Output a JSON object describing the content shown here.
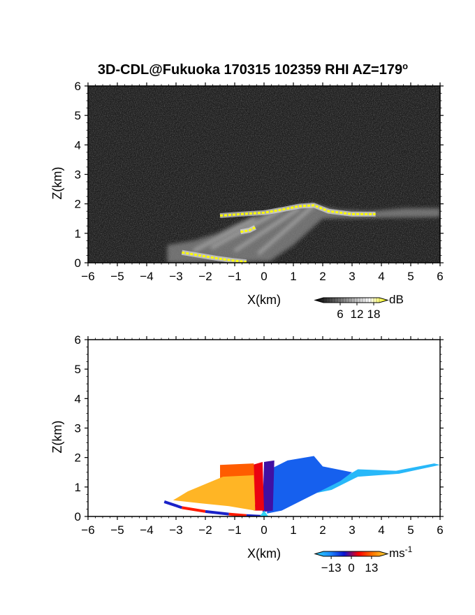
{
  "title": "3D-CDL@Fukuoka 170315 102359 RHI AZ=179",
  "title_suffix": "o",
  "chart_data": [
    {
      "type": "heatmap",
      "name": "reflectivity",
      "xlabel": "X(km)",
      "ylabel": "Z(km)",
      "xlim": [
        -6,
        6
      ],
      "ylim": [
        0,
        6
      ],
      "xticks": [
        -6,
        -5,
        -4,
        -3,
        -2,
        -1,
        0,
        1,
        2,
        3,
        4,
        5,
        6
      ],
      "yticks": [
        0,
        1,
        2,
        3,
        4,
        5,
        6
      ],
      "background": "#1e1e1e",
      "colorbar": {
        "unit": "dB",
        "ticks": [
          6,
          12,
          18
        ],
        "range": [
          0,
          20
        ],
        "colors": [
          "#000000",
          "#555555",
          "#aaaaaa",
          "#ffffff",
          "#ffff00"
        ]
      },
      "echo_envelope": [
        [
          -3.3,
          0.6
        ],
        [
          -2.4,
          0.75
        ],
        [
          -1.6,
          1.0
        ],
        [
          -1.0,
          1.3
        ],
        [
          -0.4,
          1.55
        ],
        [
          0.3,
          1.75
        ],
        [
          1.0,
          1.9
        ],
        [
          1.6,
          2.0
        ],
        [
          2.5,
          1.8
        ],
        [
          3.6,
          1.75
        ],
        [
          4.8,
          1.85
        ],
        [
          6.0,
          1.85
        ]
      ],
      "strong_echo_layers": [
        {
          "x": [
            -1.5,
            -0.8,
            0.0,
            0.6,
            1.2,
            1.7,
            2.2,
            3.0,
            3.8
          ],
          "z": [
            1.6,
            1.65,
            1.7,
            1.8,
            1.92,
            1.95,
            1.75,
            1.65,
            1.65
          ]
        },
        {
          "x": [
            -2.8,
            -2.2,
            -1.6,
            -1.1,
            -0.6
          ],
          "z": [
            0.35,
            0.25,
            0.15,
            0.08,
            0.03
          ]
        },
        {
          "x": [
            -0.8,
            -0.5,
            -0.3
          ],
          "z": [
            1.05,
            1.1,
            1.2
          ]
        }
      ]
    },
    {
      "type": "heatmap",
      "name": "doppler_velocity",
      "xlabel": "X(km)",
      "ylabel": "Z(km)",
      "xlim": [
        -6,
        6
      ],
      "ylim": [
        0,
        6
      ],
      "xticks": [
        -6,
        -5,
        -4,
        -3,
        -2,
        -1,
        0,
        1,
        2,
        3,
        4,
        5,
        6
      ],
      "yticks": [
        0,
        1,
        2,
        3,
        4,
        5,
        6
      ],
      "background": "#ffffff",
      "colorbar": {
        "unit": "ms",
        "unit_exp": "-1",
        "ticks": [
          -13,
          0,
          13
        ],
        "range": [
          -18,
          18
        ],
        "colors": [
          "#2fd5f5",
          "#1e90ff",
          "#0a14d2",
          "#ff0000",
          "#ff7a00",
          "#ffe040"
        ]
      },
      "regions": [
        {
          "velocity": -15,
          "polygon": [
            [
              1.8,
              0.8
            ],
            [
              3.2,
              1.6
            ],
            [
              4.5,
              1.55
            ],
            [
              5.8,
              1.8
            ],
            [
              6.0,
              1.75
            ],
            [
              4.6,
              1.45
            ],
            [
              3.2,
              1.35
            ],
            [
              2.3,
              0.9
            ]
          ]
        },
        {
          "velocity": -8,
          "polygon": [
            [
              0.1,
              0.1
            ],
            [
              0.2,
              1.6
            ],
            [
              0.8,
              1.9
            ],
            [
              1.7,
              2.05
            ],
            [
              2.0,
              1.7
            ],
            [
              3.0,
              1.5
            ],
            [
              2.6,
              1.2
            ],
            [
              1.6,
              0.7
            ],
            [
              0.6,
              0.2
            ]
          ]
        },
        {
          "velocity": -2,
          "polygon": [
            [
              -0.05,
              0.15
            ],
            [
              0.0,
              1.85
            ],
            [
              0.35,
              1.9
            ],
            [
              0.3,
              0.2
            ]
          ]
        },
        {
          "velocity": 3,
          "polygon": [
            [
              -0.35,
              0.2
            ],
            [
              -0.4,
              1.75
            ],
            [
              -0.05,
              1.85
            ],
            [
              0.0,
              0.2
            ]
          ]
        },
        {
          "velocity": 9,
          "polygon": [
            [
              -1.5,
              1.0
            ],
            [
              -1.5,
              1.75
            ],
            [
              -0.35,
              1.8
            ],
            [
              -0.3,
              0.4
            ],
            [
              -0.8,
              0.7
            ]
          ]
        },
        {
          "velocity": 15,
          "polygon": [
            [
              -3.1,
              0.55
            ],
            [
              -2.6,
              0.85
            ],
            [
              -2.0,
              1.1
            ],
            [
              -1.4,
              1.35
            ],
            [
              -0.35,
              1.4
            ],
            [
              -0.3,
              0.2
            ],
            [
              -1.2,
              0.35
            ],
            [
              -2.2,
              0.45
            ]
          ]
        }
      ],
      "surface_band": {
        "x": [
          -3.4,
          -2.8,
          -2.0,
          -1.2,
          -0.6,
          0.0
        ],
        "z": [
          0.5,
          0.3,
          0.17,
          0.08,
          0.03,
          0.0
        ],
        "velocities": [
          0,
          13,
          0,
          13,
          0,
          13
        ]
      }
    }
  ]
}
